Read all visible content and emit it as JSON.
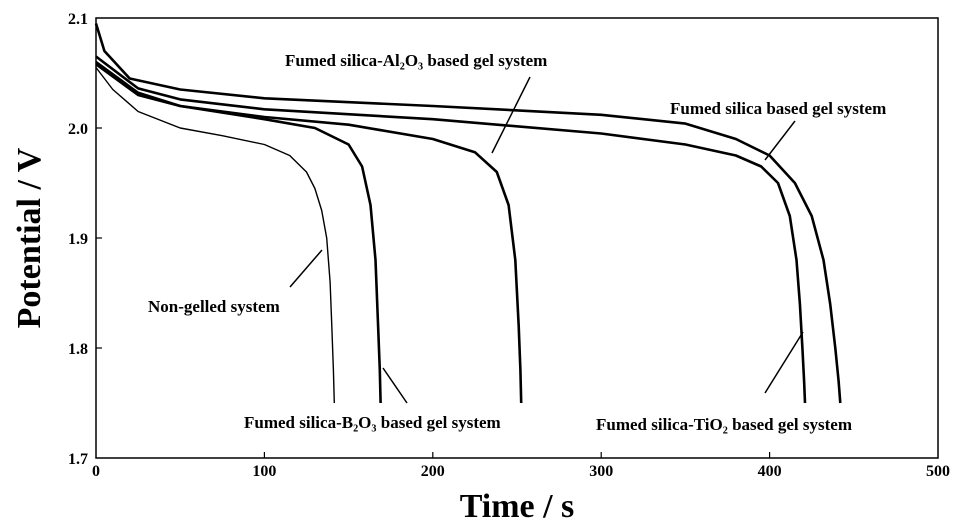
{
  "chart_data": {
    "type": "line",
    "xlabel": "Time / s",
    "ylabel": "Potential / V",
    "xlim": [
      0,
      500
    ],
    "ylim": [
      1.7,
      2.1
    ],
    "xticks": [
      "0",
      "100",
      "200",
      "300",
      "400",
      "500"
    ],
    "yticks": [
      "1.7",
      "1.8",
      "1.9",
      "2.0",
      "2.1"
    ],
    "grid": false,
    "legend": "none",
    "series": [
      {
        "name": "Non-gelled system",
        "x": [
          0,
          10,
          25,
          50,
          75,
          100,
          115,
          125,
          130,
          134,
          137,
          139,
          140,
          141,
          141.5
        ],
        "y": [
          2.055,
          2.035,
          2.015,
          2.0,
          1.993,
          1.985,
          1.975,
          1.96,
          1.945,
          1.925,
          1.9,
          1.86,
          1.82,
          1.78,
          1.75
        ]
      },
      {
        "name": "Fumed silica-B₂O₃ based gel system",
        "x": [
          0,
          25,
          50,
          100,
          130,
          150,
          158,
          163,
          166,
          167.5,
          168.5,
          169
        ],
        "y": [
          2.06,
          2.032,
          2.02,
          2.008,
          2.0,
          1.985,
          1.965,
          1.93,
          1.88,
          1.82,
          1.78,
          1.75
        ]
      },
      {
        "name": "Fumed silica-Al₂O₃ based gel system",
        "x": [
          0,
          25,
          50,
          100,
          150,
          200,
          225,
          238,
          245,
          249,
          251,
          252,
          252.5
        ],
        "y": [
          2.058,
          2.03,
          2.02,
          2.01,
          2.003,
          1.99,
          1.978,
          1.96,
          1.93,
          1.88,
          1.82,
          1.78,
          1.75
        ]
      },
      {
        "name": "Fumed silica-TiO₂ based gel system",
        "x": [
          0,
          25,
          50,
          100,
          200,
          300,
          350,
          380,
          395,
          405,
          412,
          416,
          418,
          419.5,
          420.5,
          421
        ],
        "y": [
          2.065,
          2.036,
          2.026,
          2.017,
          2.008,
          1.995,
          1.985,
          1.975,
          1.965,
          1.95,
          1.92,
          1.88,
          1.84,
          1.8,
          1.77,
          1.75
        ]
      },
      {
        "name": "Fumed silica based gel system",
        "x": [
          0,
          5,
          20,
          50,
          100,
          200,
          300,
          350,
          380,
          400,
          415,
          425,
          432,
          436,
          439,
          441,
          442
        ],
        "y": [
          2.095,
          2.07,
          2.045,
          2.035,
          2.027,
          2.02,
          2.012,
          2.004,
          1.99,
          1.975,
          1.95,
          1.92,
          1.88,
          1.84,
          1.8,
          1.77,
          1.75
        ]
      }
    ],
    "annotations": [
      {
        "text": "Non-gelled system",
        "points_to": [
          136,
          1.905
        ]
      },
      {
        "text": "Fumed silica-B₂O₃ based gel system",
        "points_to": [
          171,
          1.77
        ]
      },
      {
        "text": "Fumed silica-Al₂O₃ based gel system",
        "points_to": [
          235,
          1.97
        ]
      },
      {
        "text": "Fumed silica based gel system",
        "points_to": [
          398,
          1.965
        ]
      },
      {
        "text": "Fumed silica-TiO₂ based gel system",
        "points_to": [
          418,
          1.81
        ]
      }
    ]
  }
}
